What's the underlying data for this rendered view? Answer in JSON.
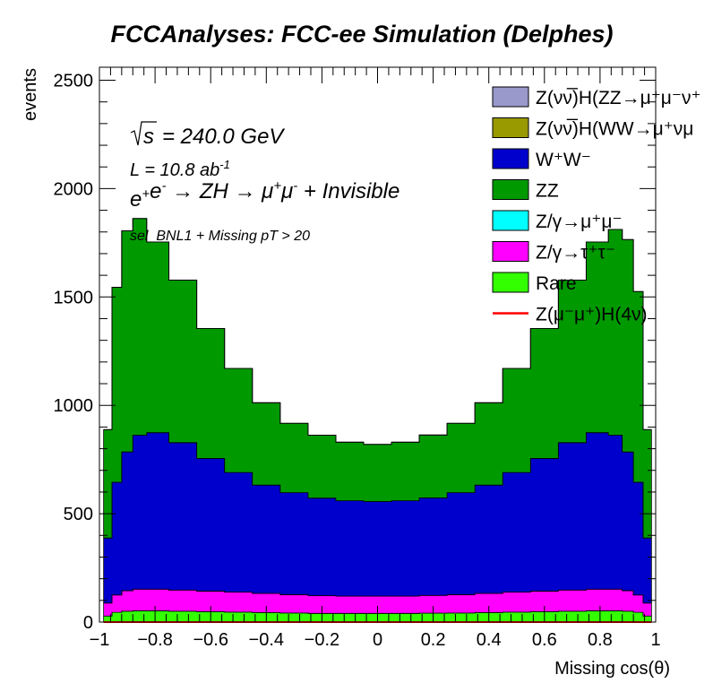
{
  "chart_data": {
    "type": "area",
    "title": "FCCAnalyses: FCC-ee Simulation (Delphes)",
    "xlabel": "Missing cos(θ)",
    "ylabel": "events",
    "xlim": [
      -1,
      1
    ],
    "ylim": [
      0,
      2560
    ],
    "stacked": true,
    "grid": false,
    "legend_position": "top-right",
    "x_ticks": [
      -1,
      -0.8,
      -0.6,
      -0.4,
      -0.2,
      0,
      0.2,
      0.4,
      0.6,
      0.8,
      1
    ],
    "x_tick_labels": [
      "−1",
      "−0.8",
      "−0.6",
      "−0.4",
      "−0.2",
      "0",
      "0.2",
      "0.4",
      "0.6",
      "0.8",
      "1"
    ],
    "y_ticks": [
      0,
      500,
      1000,
      1500,
      2000,
      2500
    ],
    "y_tick_labels": [
      "0",
      "500",
      "1000",
      "1500",
      "2000",
      "2500"
    ],
    "annotations": {
      "sqrt_s": "s",
      "energy": "= 240.0 GeV",
      "lumi": "L = 10.8 ab",
      "lumi_exp": "-1",
      "process_prefix": "e",
      "process_middle": "→ ZH → μ",
      "process_suffix": "+ Invisible",
      "selection": "sel_BNL1 + Missing pT > 20"
    },
    "legend": [
      {
        "label": "Z(νν̅)H(ZZ→μ⁺μ⁻ν⁺",
        "color": "#9999cc",
        "kind": "box"
      },
      {
        "label": "Z(νν̅)H(WW→μ⁺νμ",
        "color": "#999900",
        "kind": "box"
      },
      {
        "label": "W⁺W⁻",
        "color": "#0000cc",
        "kind": "box"
      },
      {
        "label": "ZZ",
        "color": "#009900",
        "kind": "box"
      },
      {
        "label": "Z/γ→μ⁺μ⁻",
        "color": "#00ffff",
        "kind": "box"
      },
      {
        "label": "Z/γ→τ⁺τ⁻",
        "color": "#ff00ff",
        "kind": "box"
      },
      {
        "label": "Rare",
        "color": "#33ff00",
        "kind": "box"
      },
      {
        "label": "Z(μ⁻μ⁺)H(4ν)",
        "color": "#ff0000",
        "kind": "line"
      }
    ],
    "x_points": [
      -0.97,
      -0.94,
      -0.9,
      -0.86,
      -0.8,
      -0.7,
      -0.6,
      -0.5,
      -0.4,
      -0.3,
      -0.2,
      -0.1,
      0.0,
      0.1,
      0.2,
      0.3,
      0.4,
      0.5,
      0.6,
      0.7,
      0.8,
      0.86,
      0.9,
      0.94,
      0.97
    ],
    "series": [
      {
        "name": "Rare",
        "color": "#33ff00",
        "values": [
          28,
          45,
          50,
          52,
          52,
          50,
          48,
          46,
          44,
          42,
          40,
          40,
          40,
          40,
          41,
          42,
          44,
          46,
          48,
          50,
          52,
          52,
          50,
          45,
          28
        ]
      },
      {
        "name": "Z/γ→τ⁺τ⁻",
        "color": "#ff00ff",
        "values": [
          60,
          80,
          95,
          100,
          100,
          98,
          95,
          92,
          88,
          85,
          82,
          80,
          80,
          80,
          82,
          85,
          88,
          92,
          95,
          98,
          100,
          100,
          95,
          80,
          60
        ]
      },
      {
        "name": "Z/γ→μ⁺μ⁻",
        "color": "#00ffff",
        "values": [
          0,
          0,
          0,
          0,
          0,
          0,
          0,
          0,
          0,
          0,
          0,
          0,
          0,
          0,
          0,
          0,
          0,
          0,
          0,
          0,
          0,
          0,
          0,
          0,
          0
        ]
      },
      {
        "name": "W⁺W⁻",
        "color": "#0000cc",
        "values": [
          300,
          520,
          640,
          710,
          722,
          680,
          612,
          552,
          500,
          470,
          450,
          440,
          436,
          440,
          450,
          470,
          500,
          552,
          612,
          680,
          722,
          710,
          640,
          520,
          300
        ]
      },
      {
        "name": "ZZ",
        "color": "#009900",
        "values": [
          500,
          900,
          1020,
          1000,
          880,
          750,
          600,
          480,
          380,
          320,
          290,
          270,
          264,
          270,
          290,
          320,
          380,
          480,
          600,
          750,
          880,
          950,
          980,
          880,
          500
        ]
      },
      {
        "name": "Z(νν̅)H(WW→μ⁺νμ",
        "color": "#999900",
        "values": [
          0,
          0,
          0,
          0,
          0,
          0,
          0,
          0,
          0,
          0,
          0,
          0,
          0,
          0,
          0,
          0,
          0,
          0,
          0,
          0,
          0,
          0,
          0,
          0,
          0
        ]
      },
      {
        "name": "Z(νν̅)H(ZZ→μ⁺μ⁻ν⁺",
        "color": "#9999cc",
        "values": [
          0,
          0,
          0,
          0,
          0,
          0,
          0,
          0,
          0,
          0,
          0,
          0,
          0,
          0,
          0,
          0,
          0,
          0,
          0,
          0,
          0,
          0,
          0,
          0,
          0
        ]
      }
    ],
    "signal": {
      "name": "Z(μ⁻μ⁺)H(4ν)",
      "color": "#ff0000",
      "values": [
        0,
        0,
        0,
        0,
        0,
        0,
        0,
        0,
        0,
        0,
        0,
        0,
        0,
        0,
        0,
        0,
        0,
        0,
        0,
        0,
        0,
        0,
        0,
        0,
        0
      ]
    }
  }
}
